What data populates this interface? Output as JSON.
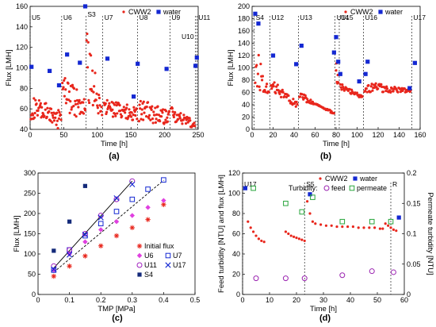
{
  "chart_data": [
    {
      "panel": "(a)",
      "type": "scatter",
      "xlabel": "Time [h]",
      "ylabel": "Flux [LMH]",
      "xlim": [
        0,
        250
      ],
      "ylim": [
        40,
        160
      ],
      "xticks": [
        0,
        50,
        100,
        150,
        200,
        250
      ],
      "yticks": [
        40,
        60,
        80,
        100,
        120,
        140,
        160
      ],
      "legend": {
        "placement": "top-right",
        "entries": [
          "CWW2",
          "water"
        ]
      },
      "markers": [
        {
          "label": "U5",
          "x": 0
        },
        {
          "label": "U6",
          "x": 47
        },
        {
          "label": "S3",
          "x": 83
        },
        {
          "label": "U7",
          "x": 108
        },
        {
          "label": "U8",
          "x": 160
        },
        {
          "label": "U9",
          "x": 208
        },
        {
          "label": "U10",
          "x": 246
        },
        {
          "label": "U11",
          "x": 248
        }
      ],
      "series": [
        {
          "name": "CWW2",
          "color": "#e8261c",
          "style": "dots",
          "segments": [
            {
              "x": [
                1,
                46
              ],
              "y_hi": [
                72,
                60
              ],
              "y_lo": [
                50,
                40
              ]
            },
            {
              "x": [
                48,
                82
              ],
              "y_hi": [
                95,
                70
              ],
              "y_lo": [
                60,
                46
              ]
            },
            {
              "x": [
                84,
                107
              ],
              "y_hi": [
                140,
                60
              ],
              "y_lo": [
                70,
                45
              ]
            },
            {
              "x": [
                110,
                159
              ],
              "y_hi": [
                70,
                62
              ],
              "y_lo": [
                54,
                48
              ]
            },
            {
              "x": [
                162,
                207
              ],
              "y_hi": [
                70,
                58
              ],
              "y_lo": [
                48,
                44
              ]
            },
            {
              "x": [
                210,
                245
              ],
              "y_hi": [
                62,
                48
              ],
              "y_lo": [
                48,
                41
              ]
            }
          ]
        },
        {
          "name": "water",
          "color": "#1428d2",
          "style": "squares",
          "points": [
            [
              2,
              101
            ],
            [
              29,
              97
            ],
            [
              43,
              83
            ],
            [
              55,
              113
            ],
            [
              74,
              105
            ],
            [
              82,
              160
            ],
            [
              115,
              109
            ],
            [
              154,
              72
            ],
            [
              160,
              104
            ],
            [
              203,
              99
            ],
            [
              246,
              102
            ],
            [
              248,
              110
            ]
          ]
        }
      ]
    },
    {
      "panel": "(b)",
      "type": "scatter",
      "xlabel": "Time [h]",
      "ylabel": "Flux [LMH]",
      "xlim": [
        0,
        160
      ],
      "ylim": [
        0,
        200
      ],
      "xticks": [
        0,
        20,
        40,
        60,
        80,
        100,
        120,
        140,
        160
      ],
      "yticks": [
        0,
        20,
        40,
        60,
        80,
        100,
        120,
        140,
        160,
        180,
        200
      ],
      "legend": {
        "placement": "top-right",
        "entries": [
          "CWW2",
          "water"
        ]
      },
      "markers": [
        {
          "label": "S4",
          "x": 2
        },
        {
          "label": "U12",
          "x": 17
        },
        {
          "label": "U13",
          "x": 44
        },
        {
          "label": "U14",
          "x": 79
        },
        {
          "label": "U15",
          "x": 83
        },
        {
          "label": "U16",
          "x": 106
        },
        {
          "label": "U17",
          "x": 152
        }
      ],
      "series": [
        {
          "name": "CWW2",
          "color": "#e8261c",
          "style": "dots",
          "segments": [
            {
              "x": [
                3,
                16
              ],
              "y_hi": [
                145,
                65
              ],
              "y_lo": [
                62,
                58
              ]
            },
            {
              "x": [
                18,
                43
              ],
              "y_hi": [
                82,
                45
              ],
              "y_lo": [
                62,
                35
              ]
            },
            {
              "x": [
                45,
                78
              ],
              "y_hi": [
                62,
                22
              ],
              "y_lo": [
                48,
                30
              ]
            },
            {
              "x": [
                80,
                82
              ],
              "y_hi": [
                140,
                80
              ],
              "y_lo": [
                80,
                70
              ]
            },
            {
              "x": [
                84,
                105
              ],
              "y_hi": [
                75,
                55
              ],
              "y_lo": [
                65,
                50
              ]
            },
            {
              "x": [
                107,
                151
              ],
              "y_hi": [
                78,
                65
              ],
              "y_lo": [
                60,
                60
              ]
            }
          ]
        },
        {
          "name": "water",
          "color": "#1428d2",
          "style": "squares",
          "points": [
            [
              3,
              188
            ],
            [
              6,
              172
            ],
            [
              20,
              120
            ],
            [
              42,
              106
            ],
            [
              47,
              136
            ],
            [
              78,
              125
            ],
            [
              80,
              150
            ],
            [
              82,
              110
            ],
            [
              84,
              90
            ],
            [
              102,
              78
            ],
            [
              108,
              90
            ],
            [
              110,
              110
            ],
            [
              150,
              67
            ],
            [
              155,
              108
            ]
          ]
        }
      ]
    },
    {
      "panel": "(c)",
      "type": "scatter",
      "xlabel": "TMP [MPa]",
      "ylabel": "Flux [LMH]",
      "xlim": [
        0,
        0.5
      ],
      "ylim": [
        0,
        300
      ],
      "xticks": [
        0,
        0.1,
        0.2,
        0.3,
        0.4,
        0.5
      ],
      "yticks": [
        0,
        50,
        100,
        150,
        200,
        250,
        300
      ],
      "legend": {
        "placement": "bottom-right",
        "entries": [
          "Initial flux",
          "U6",
          "U7",
          "U11",
          "U17",
          "S4"
        ]
      },
      "series": [
        {
          "name": "Initial flux",
          "color": "#e8261c",
          "marker": "star",
          "points": [
            [
              0.05,
              45
            ],
            [
              0.1,
              70
            ],
            [
              0.15,
              95
            ],
            [
              0.2,
              120
            ],
            [
              0.25,
              145
            ],
            [
              0.3,
              165
            ],
            [
              0.35,
              185
            ],
            [
              0.4,
              222
            ]
          ]
        },
        {
          "name": "U6",
          "color": "#e040e0",
          "marker": "diamond",
          "points": [
            [
              0.05,
              60
            ],
            [
              0.1,
              100
            ],
            [
              0.15,
              130
            ],
            [
              0.2,
              160
            ],
            [
              0.25,
              180
            ],
            [
              0.3,
              195
            ],
            [
              0.35,
              215
            ],
            [
              0.4,
              232
            ]
          ]
        },
        {
          "name": "U7",
          "color": "#1428d2",
          "marker": "open-square",
          "points": [
            [
              0.05,
              60
            ],
            [
              0.1,
              110
            ],
            [
              0.15,
              145
            ],
            [
              0.2,
              175
            ],
            [
              0.25,
              205
            ],
            [
              0.3,
              235
            ],
            [
              0.35,
              260
            ],
            [
              0.4,
              283
            ]
          ]
        },
        {
          "name": "U11",
          "color": "#a020c0",
          "marker": "open-circle",
          "points": [
            [
              0.05,
              70
            ],
            [
              0.1,
              110
            ],
            [
              0.15,
              150
            ],
            [
              0.2,
              195
            ],
            [
              0.25,
              235
            ],
            [
              0.3,
              280
            ]
          ]
        },
        {
          "name": "U17",
          "color": "#1428d2",
          "marker": "cross",
          "points": [
            [
              0.05,
              62
            ],
            [
              0.1,
              98
            ],
            [
              0.15,
              148
            ],
            [
              0.2,
              190
            ],
            [
              0.25,
              238
            ],
            [
              0.3,
              272
            ]
          ]
        },
        {
          "name": "S4",
          "color": "#142a7a",
          "marker": "filled-square",
          "points": [
            [
              0.05,
              108
            ],
            [
              0.1,
              180
            ],
            [
              0.15,
              268
            ]
          ]
        }
      ],
      "fit_lines": [
        {
          "style": "solid",
          "from": [
            0.05,
            65
          ],
          "to": [
            0.3,
            280
          ]
        },
        {
          "style": "dashed",
          "from": [
            0.05,
            55
          ],
          "to": [
            0.4,
            282
          ]
        }
      ]
    },
    {
      "panel": "(d)",
      "type": "scatter",
      "xlabel": "Time [h]",
      "ylabel": "Feed turbidity [NTU] and flux [LMH]",
      "y2label": "Permeate turbidity [NTU]",
      "xlim": [
        0,
        60
      ],
      "ylim": [
        0,
        120
      ],
      "y2lim": [
        0,
        0.2
      ],
      "xticks": [
        0,
        10,
        20,
        30,
        40,
        50,
        60
      ],
      "yticks": [
        0,
        20,
        40,
        60,
        80,
        100,
        120
      ],
      "y2ticks": [
        0,
        0.05,
        0.1,
        0.15,
        0.2
      ],
      "legend": {
        "placement": "top-right",
        "entries": [
          "CWW2",
          "water",
          "feed",
          "permeate"
        ],
        "group_label": "Turbidity:"
      },
      "markers": [
        {
          "label": "U17",
          "x": 0
        },
        {
          "label": "S5",
          "x": 23
        },
        {
          "label": "R",
          "x": 55
        }
      ],
      "series": [
        {
          "name": "CWW2",
          "color": "#e8261c",
          "style": "dots",
          "points": [
            [
              2,
              72
            ],
            [
              3,
              66
            ],
            [
              4,
              62
            ],
            [
              5,
              58
            ],
            [
              6,
              55
            ],
            [
              7,
              53
            ],
            [
              8,
              52
            ],
            [
              16,
              62
            ],
            [
              17,
              60
            ],
            [
              18,
              58
            ],
            [
              19,
              57
            ],
            [
              20,
              56
            ],
            [
              21,
              55
            ],
            [
              22,
              54
            ],
            [
              23,
              53
            ],
            [
              24,
              92
            ],
            [
              25,
              80
            ],
            [
              26,
              72
            ],
            [
              27,
              70
            ],
            [
              29,
              69
            ],
            [
              31,
              68
            ],
            [
              33,
              68
            ],
            [
              35,
              67
            ],
            [
              37,
              67
            ],
            [
              39,
              67
            ],
            [
              41,
              67
            ],
            [
              43,
              66
            ],
            [
              45,
              66
            ],
            [
              47,
              66
            ],
            [
              49,
              66
            ],
            [
              51,
              65
            ],
            [
              52,
              65
            ],
            [
              53,
              70
            ],
            [
              54,
              68
            ],
            [
              55,
              66
            ],
            [
              56,
              64
            ],
            [
              57,
              63
            ]
          ]
        },
        {
          "name": "water",
          "color": "#1428d2",
          "style": "squares",
          "points": [
            [
              1,
              105
            ],
            [
              25,
              99
            ],
            [
              58,
              76
            ]
          ]
        },
        {
          "name": "feed",
          "color": "#9a22b0",
          "marker": "open-circle",
          "points": [
            [
              5,
              16
            ],
            [
              16,
              16
            ],
            [
              23,
              16
            ],
            [
              37,
              19
            ],
            [
              48,
              23
            ],
            [
              56,
              22
            ]
          ]
        },
        {
          "name": "permeate",
          "color": "#26a43a",
          "marker": "open-square",
          "axis": "right",
          "points": [
            [
              4,
              0.175
            ],
            [
              16,
              0.15
            ],
            [
              22,
              0.136
            ],
            [
              26,
              0.16
            ],
            [
              37,
              0.12
            ],
            [
              48,
              0.12
            ],
            [
              55,
              0.12
            ]
          ]
        }
      ]
    }
  ]
}
